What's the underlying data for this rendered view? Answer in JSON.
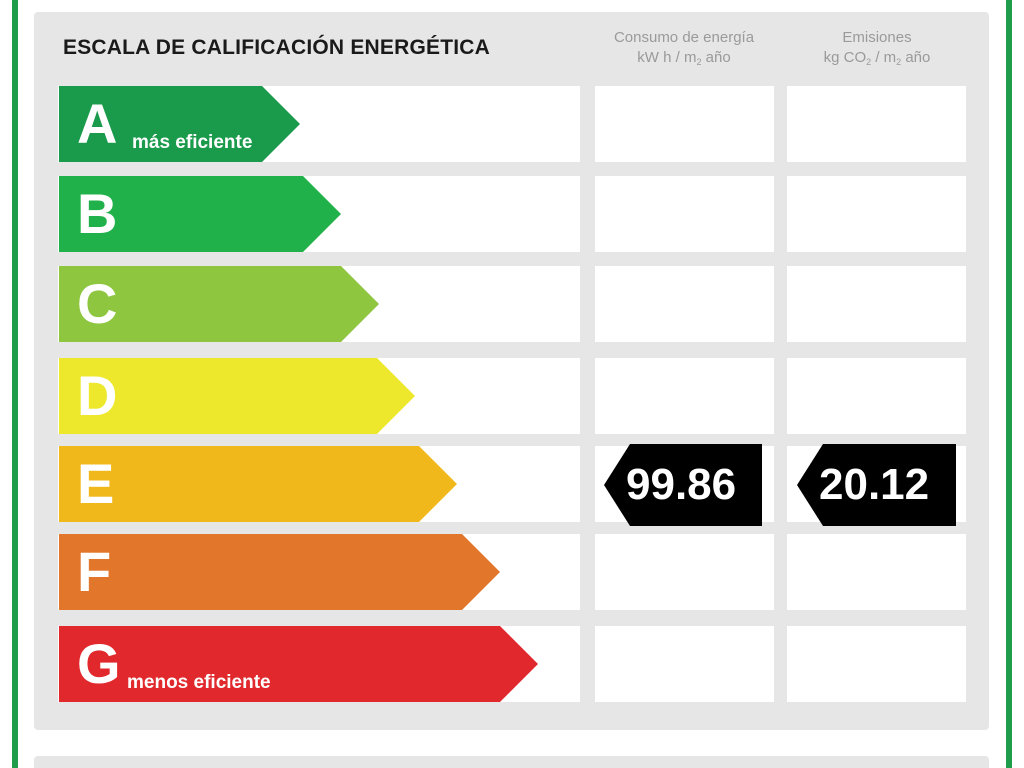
{
  "title": "ESCALA DE CALIFICACIÓN ENERGÉTICA",
  "columns": {
    "consumo": {
      "line1": "Consumo de energía",
      "line2_pre": "kW h / m",
      "line2_sub": "2",
      "line2_post": " año"
    },
    "emisiones": {
      "line1": "Emisiones",
      "line2_pre": "kg CO",
      "line2_sub": "2",
      "line2_mid": " / m",
      "line2_sub2": "2",
      "line2_post": " año"
    }
  },
  "bands": [
    {
      "letter": "A",
      "caption": "más eficiente",
      "color": "#1a9a4b"
    },
    {
      "letter": "B",
      "caption": "",
      "color": "#21b14b"
    },
    {
      "letter": "C",
      "caption": "",
      "color": "#8ec63f"
    },
    {
      "letter": "D",
      "caption": "",
      "color": "#ede82b"
    },
    {
      "letter": "E",
      "caption": "",
      "color": "#f1b81c"
    },
    {
      "letter": "F",
      "caption": "",
      "color": "#e2762a"
    },
    {
      "letter": "G",
      "caption": "menos eficiente",
      "color": "#e1282c"
    }
  ],
  "rating": {
    "band": "E",
    "consumo_value": "99.86",
    "emisiones_value": "20.12",
    "tag_color": "#000000"
  }
}
